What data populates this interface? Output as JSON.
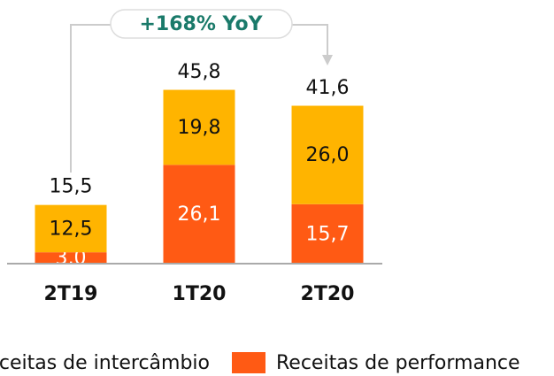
{
  "chart_data": {
    "type": "stacked_bar",
    "annotation": "+168% YoY",
    "categories": [
      "2T19",
      "1T20",
      "2T20"
    ],
    "series": [
      {
        "name": "Receitas de performance",
        "color": "#ff5a14",
        "values": [
          3.0,
          26.1,
          15.7
        ],
        "value_labels": [
          "3,0",
          "26,1",
          "15,7"
        ]
      },
      {
        "name": "Receitas de intercâmbio",
        "color": "#ffb400",
        "values": [
          12.5,
          19.8,
          26.0
        ],
        "value_labels": [
          "12,5",
          "19,8",
          "26,0"
        ]
      }
    ],
    "totals": [
      15.5,
      45.8,
      41.6
    ],
    "total_labels": [
      "15,5",
      "45,8",
      "41,6"
    ],
    "ylim": [
      0,
      50
    ]
  }
}
